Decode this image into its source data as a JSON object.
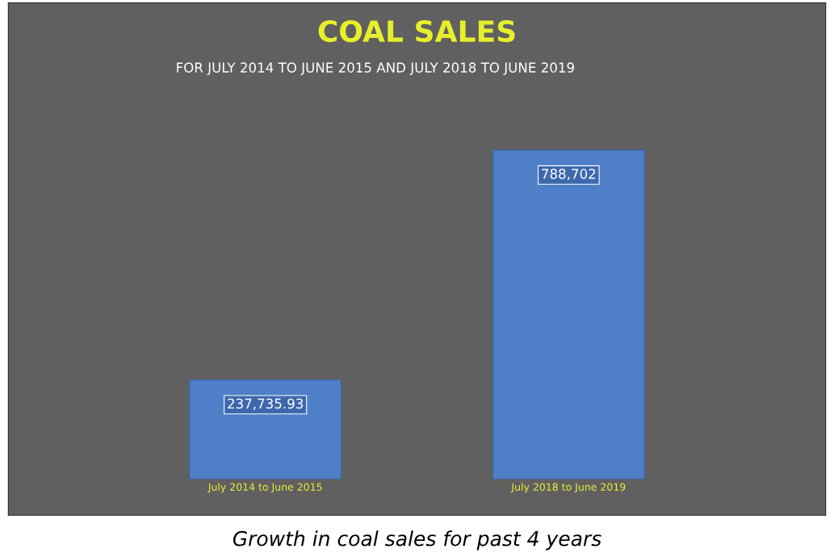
{
  "chart_data": {
    "type": "bar",
    "title": "COAL SALES",
    "subtitle": "FOR JULY 2014 TO JUNE 2015 AND JULY 2018 TO JUNE 2019",
    "categories": [
      "July 2014 to June 2015",
      "July 2018 to June 2019"
    ],
    "values": [
      237735.93,
      788702
    ],
    "color": "#4f7fc6",
    "value_labels": [
      "237,735.93",
      "788,702"
    ],
    "annotations": [
      "Growth in coal sales for past 4 years"
    ],
    "grid": false,
    "legend": false
  }
}
